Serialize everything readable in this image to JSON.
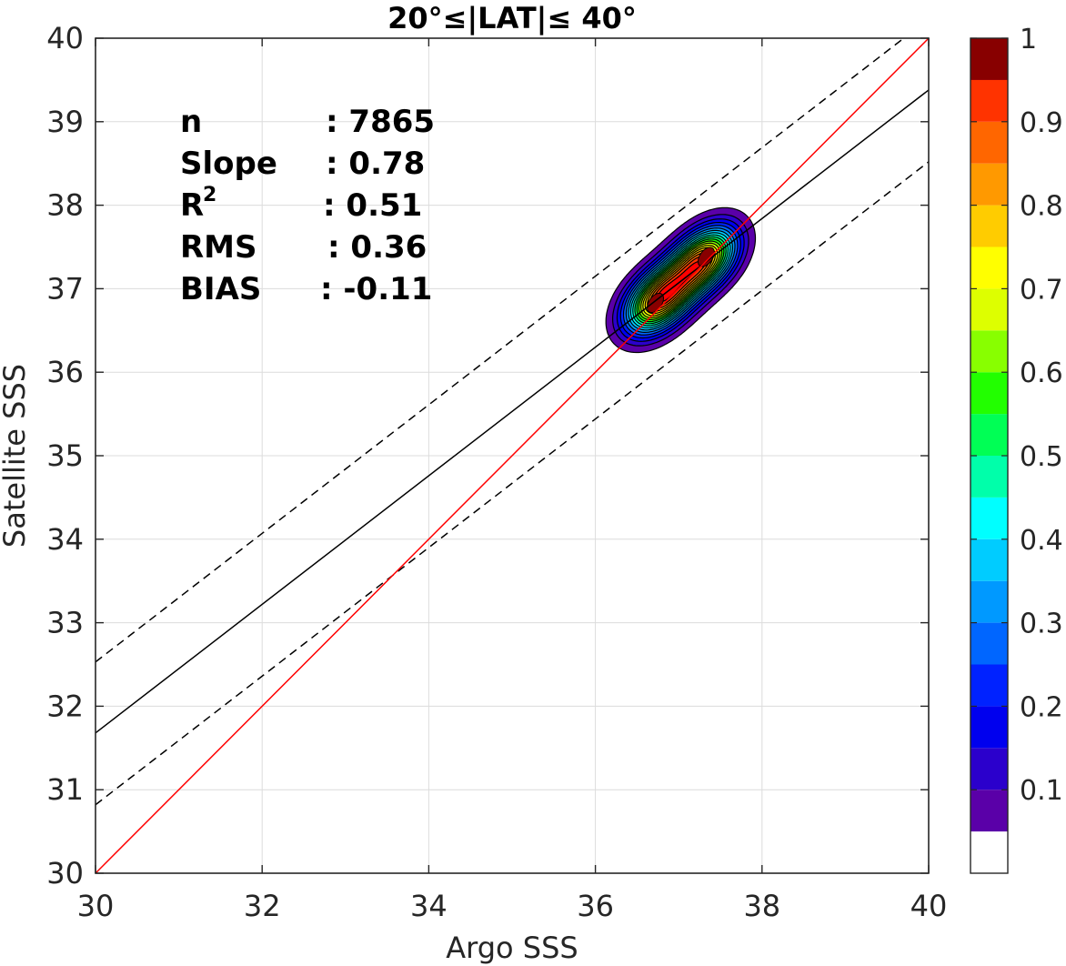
{
  "chart_data": {
    "type": "contour",
    "title": "20°≤|LAT|≤ 40°",
    "xlabel": "Argo SSS",
    "ylabel": "Satellite SSS",
    "xlim": [
      30,
      40
    ],
    "ylim": [
      30,
      40
    ],
    "xticks": [
      "30",
      "32",
      "34",
      "36",
      "38",
      "40"
    ],
    "yticks": [
      "30",
      "31",
      "32",
      "33",
      "34",
      "35",
      "36",
      "37",
      "38",
      "39",
      "40"
    ],
    "grid": true,
    "stats": [
      {
        "label": "n",
        "value": ": 7865"
      },
      {
        "label": "Slope",
        "value": ": 0.78"
      },
      {
        "label": "R",
        "sup": "2",
        "value": ": 0.51"
      },
      {
        "label": "RMS",
        "value": ": 0.36"
      },
      {
        "label": "BIAS",
        "value": ": -0.11"
      }
    ],
    "one_to_one_line": {
      "x": [
        30,
        40
      ],
      "y": [
        30,
        40
      ],
      "color": "#ff0000"
    },
    "fit_line": {
      "x": [
        30,
        40
      ],
      "y": [
        31.68,
        39.38
      ],
      "color": "#000000",
      "style": "solid"
    },
    "fit_bounds": [
      {
        "x": [
          30,
          40
        ],
        "y": [
          32.53,
          40.23
        ],
        "style": "dashed"
      },
      {
        "x": [
          30,
          40
        ],
        "y": [
          30.82,
          38.52
        ],
        "style": "dashed"
      }
    ],
    "density": {
      "peaks": [
        {
          "x": 36.72,
          "y": 36.83,
          "weight": 1.0
        },
        {
          "x": 37.33,
          "y": 37.38,
          "weight": 0.97
        },
        {
          "x": 37.02,
          "y": 37.1,
          "weight": 0.55
        }
      ],
      "min_level": 0.05,
      "max_level": 1.0
    },
    "colorbar": {
      "ticks": [
        "0.1",
        "0.2",
        "0.3",
        "0.4",
        "0.5",
        "0.6",
        "0.7",
        "0.8",
        "0.9",
        "1"
      ],
      "tick_values": [
        0.1,
        0.2,
        0.3,
        0.4,
        0.5,
        0.6,
        0.7,
        0.8,
        0.9,
        1.0
      ],
      "range": [
        0,
        1
      ],
      "levels": [
        0.05,
        0.1,
        0.15,
        0.2,
        0.25,
        0.3,
        0.35,
        0.4,
        0.45,
        0.5,
        0.55,
        0.6,
        0.65,
        0.7,
        0.75,
        0.8,
        0.85,
        0.9,
        0.95,
        1.0
      ],
      "colors": [
        "#ffffff",
        "#5a00a8",
        "#2b00cc",
        "#0000ee",
        "#0022ff",
        "#0066ff",
        "#0099ff",
        "#00ccff",
        "#00ffff",
        "#00ffaa",
        "#00ff55",
        "#22ff00",
        "#88ff00",
        "#ddff00",
        "#ffff00",
        "#ffcc00",
        "#ff9900",
        "#ff6600",
        "#ff3300",
        "#ff0000",
        "#cc0000",
        "#880000"
      ]
    }
  }
}
